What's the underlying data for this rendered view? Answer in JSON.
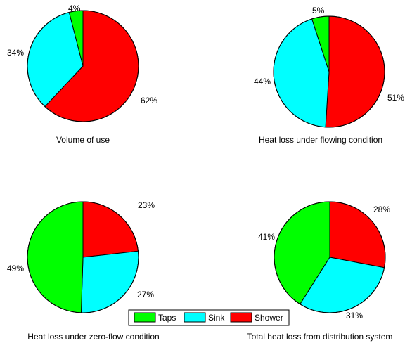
{
  "chart_data": [
    {
      "type": "pie",
      "title": "Volume of use",
      "slices": [
        {
          "label": "Shower",
          "value": 62,
          "text": "62%"
        },
        {
          "label": "Sink",
          "value": 34,
          "text": "34%"
        },
        {
          "label": "Taps",
          "value": 4,
          "text": "4%"
        }
      ]
    },
    {
      "type": "pie",
      "title": "Heat loss under flowing condition",
      "slices": [
        {
          "label": "Shower",
          "value": 51,
          "text": "51%"
        },
        {
          "label": "Sink",
          "value": 44,
          "text": "44%"
        },
        {
          "label": "Taps",
          "value": 5,
          "text": "5%"
        }
      ]
    },
    {
      "type": "pie",
      "title": "Heat loss under zero-flow condition",
      "slices": [
        {
          "label": "Shower",
          "value": 23,
          "text": "23%"
        },
        {
          "label": "Sink",
          "value": 27,
          "text": "27%"
        },
        {
          "label": "Taps",
          "value": 49,
          "text": "49%"
        }
      ]
    },
    {
      "type": "pie",
      "title": "Total heat loss from distribution system",
      "slices": [
        {
          "label": "Shower",
          "value": 28,
          "text": "28%"
        },
        {
          "label": "Sink",
          "value": 31,
          "text": "31%"
        },
        {
          "label": "Taps",
          "value": 41,
          "text": "41%"
        }
      ]
    }
  ],
  "legend": {
    "placement": "bottom-center",
    "items": [
      {
        "label": "Taps",
        "color": "#00ff00"
      },
      {
        "label": "Sink",
        "color": "#00ffff"
      },
      {
        "label": "Shower",
        "color": "#ff0000"
      }
    ]
  },
  "colors": {
    "Taps": "#00ff00",
    "Sink": "#00ffff",
    "Shower": "#ff0000"
  }
}
